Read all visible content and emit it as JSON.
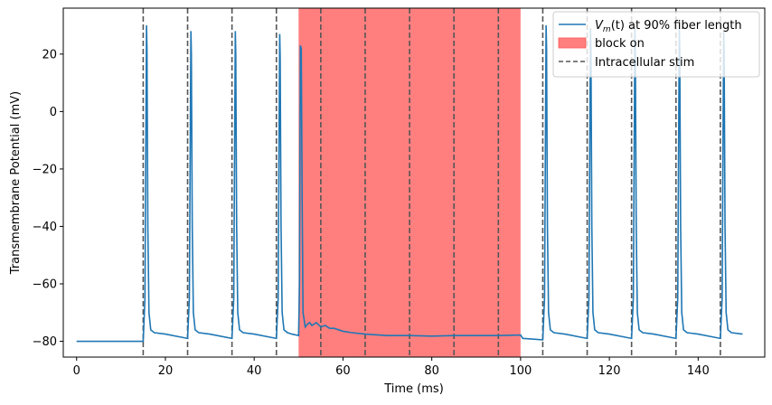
{
  "chart_data": {
    "type": "line",
    "xlabel": "Time (ms)",
    "ylabel": "Transmembrane Potential (mV)",
    "xlim": [
      -3,
      155
    ],
    "ylim": [
      -85.5,
      36
    ],
    "x_ticks": [
      0,
      20,
      40,
      60,
      80,
      100,
      120,
      140
    ],
    "y_ticks": [
      -80,
      -60,
      -40,
      -20,
      0,
      20
    ],
    "legend_position": "top-right",
    "grid": false,
    "series": [
      {
        "name_prefix": "V",
        "name_sub": "m",
        "name_suffix": "(t) at 90% fiber length",
        "color": "#1f77b4",
        "x": [
          0,
          15,
          15.4,
          15.6,
          15.75,
          15.85,
          16.05,
          16.3,
          16.7,
          17.5,
          20,
          25,
          25.4,
          25.6,
          25.75,
          25.85,
          26.05,
          26.3,
          26.7,
          27.5,
          30,
          35,
          35.4,
          35.6,
          35.75,
          35.85,
          36.05,
          36.3,
          36.7,
          37.5,
          40,
          45,
          45.4,
          45.6,
          45.75,
          45.85,
          46.05,
          46.3,
          46.7,
          47.5,
          48.5,
          50,
          50.2,
          50.4,
          50.6,
          50.8,
          51,
          51.5,
          52,
          52.5,
          53,
          54,
          55,
          56,
          57,
          58,
          59,
          60,
          62,
          65,
          70,
          75,
          80,
          85,
          90,
          95,
          100,
          100.5,
          105,
          105.4,
          105.6,
          105.75,
          105.85,
          106.05,
          106.3,
          106.7,
          107.5,
          110,
          115,
          115.4,
          115.6,
          115.75,
          115.85,
          116.05,
          116.3,
          116.7,
          117.5,
          120,
          125,
          125.4,
          125.6,
          125.75,
          125.85,
          126.05,
          126.3,
          126.7,
          127.5,
          130,
          135,
          135.4,
          135.6,
          135.75,
          135.85,
          136.05,
          136.3,
          136.7,
          137.5,
          140,
          145,
          145.4,
          145.6,
          145.75,
          145.85,
          146.05,
          146.3,
          146.7,
          147.5,
          150
        ],
        "y": [
          -80,
          -80,
          -65,
          -10,
          30,
          22,
          -40,
          -70,
          -76,
          -77,
          -77.5,
          -79,
          -65,
          -10,
          28,
          20,
          -40,
          -70,
          -76,
          -77,
          -77.5,
          -79,
          -65,
          -10,
          28,
          20,
          -40,
          -70,
          -76,
          -77,
          -77.5,
          -79,
          -65,
          -10,
          27,
          19,
          -40,
          -70,
          -76,
          -77,
          -77.5,
          -78,
          -60,
          23,
          22,
          -30,
          -70,
          -75,
          -74,
          -73.5,
          -74.5,
          -73.5,
          -75,
          -74.5,
          -75.5,
          -75.5,
          -76,
          -76.5,
          -77,
          -77.5,
          -78,
          -78,
          -78.2,
          -78,
          -78,
          -78,
          -77.8,
          -79,
          -79.5,
          -65,
          -10,
          30,
          22,
          -40,
          -70,
          -76,
          -77,
          -77.5,
          -79,
          -65,
          -10,
          29,
          21,
          -40,
          -70,
          -76,
          -77,
          -77.5,
          -79,
          -65,
          -10,
          29,
          21,
          -40,
          -70,
          -76,
          -77,
          -77.5,
          -79,
          -65,
          -10,
          29,
          21,
          -40,
          -70,
          -76,
          -77,
          -77.5,
          -79,
          -65,
          -10,
          28,
          20,
          -40,
          -70,
          -76,
          -77,
          -77.5
        ]
      }
    ],
    "block": {
      "label": "block on",
      "start": 50,
      "end": 100,
      "color": "#ff7f7f"
    },
    "stim": {
      "label": "Intracellular stim",
      "times": [
        15,
        25,
        35,
        45,
        55,
        65,
        75,
        85,
        95,
        105,
        115,
        125,
        135,
        145
      ],
      "color": "#555555"
    }
  }
}
